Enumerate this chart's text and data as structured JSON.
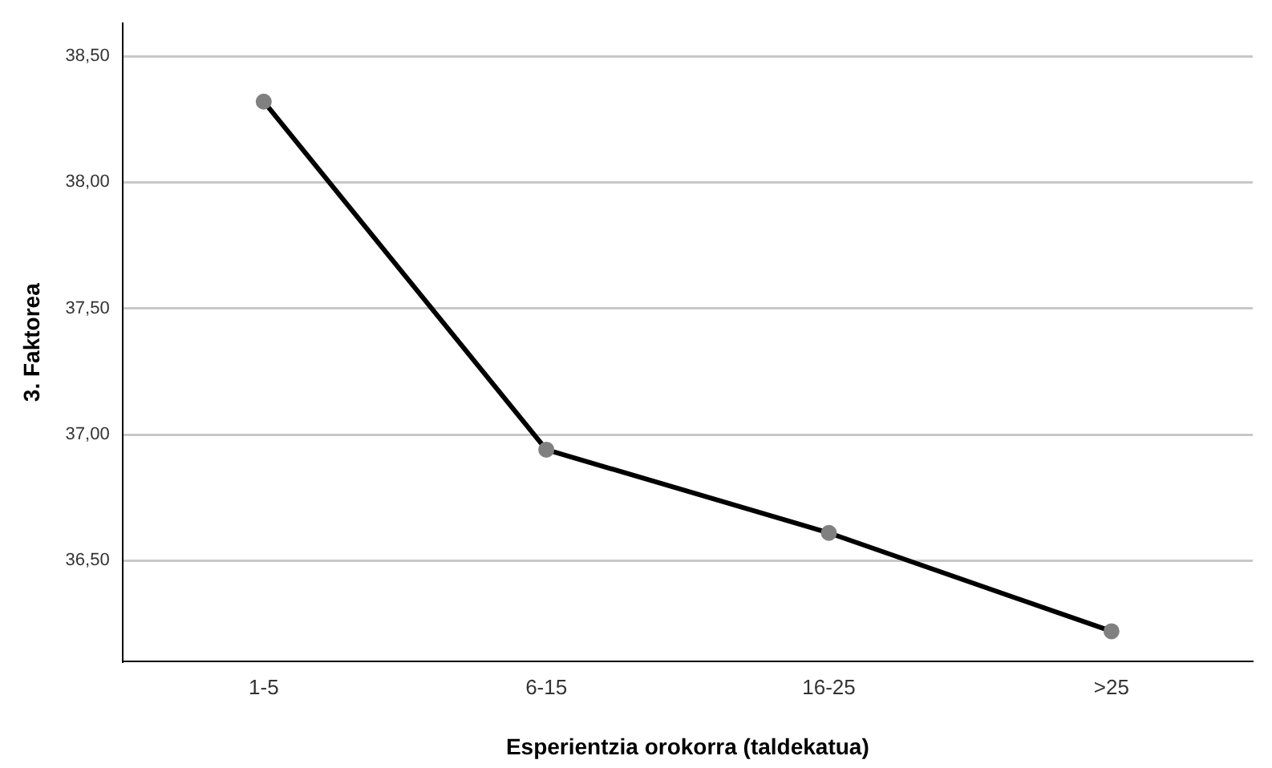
{
  "chart_data": {
    "type": "line",
    "xlabel": "Esperientzia orokorra (taldekatua)",
    "ylabel": "3. Faktorea",
    "categories": [
      "1-5",
      "6-15",
      "16-25",
      ">25"
    ],
    "series": [
      {
        "color": "#000000",
        "values": [
          38.32,
          36.94,
          36.61,
          36.22
        ]
      }
    ],
    "ylim": [
      36.1,
      38.63
    ],
    "yticks": [
      {
        "value": 36.5,
        "label": "36,50"
      },
      {
        "value": 37,
        "label": "37,00"
      },
      {
        "value": 37.5,
        "label": "37,50"
      },
      {
        "value": 38,
        "label": "38,00"
      },
      {
        "value": 38.5,
        "label": "38,50"
      }
    ],
    "grid": "y",
    "legend": false,
    "marker": "circle",
    "line_style": "solid"
  }
}
